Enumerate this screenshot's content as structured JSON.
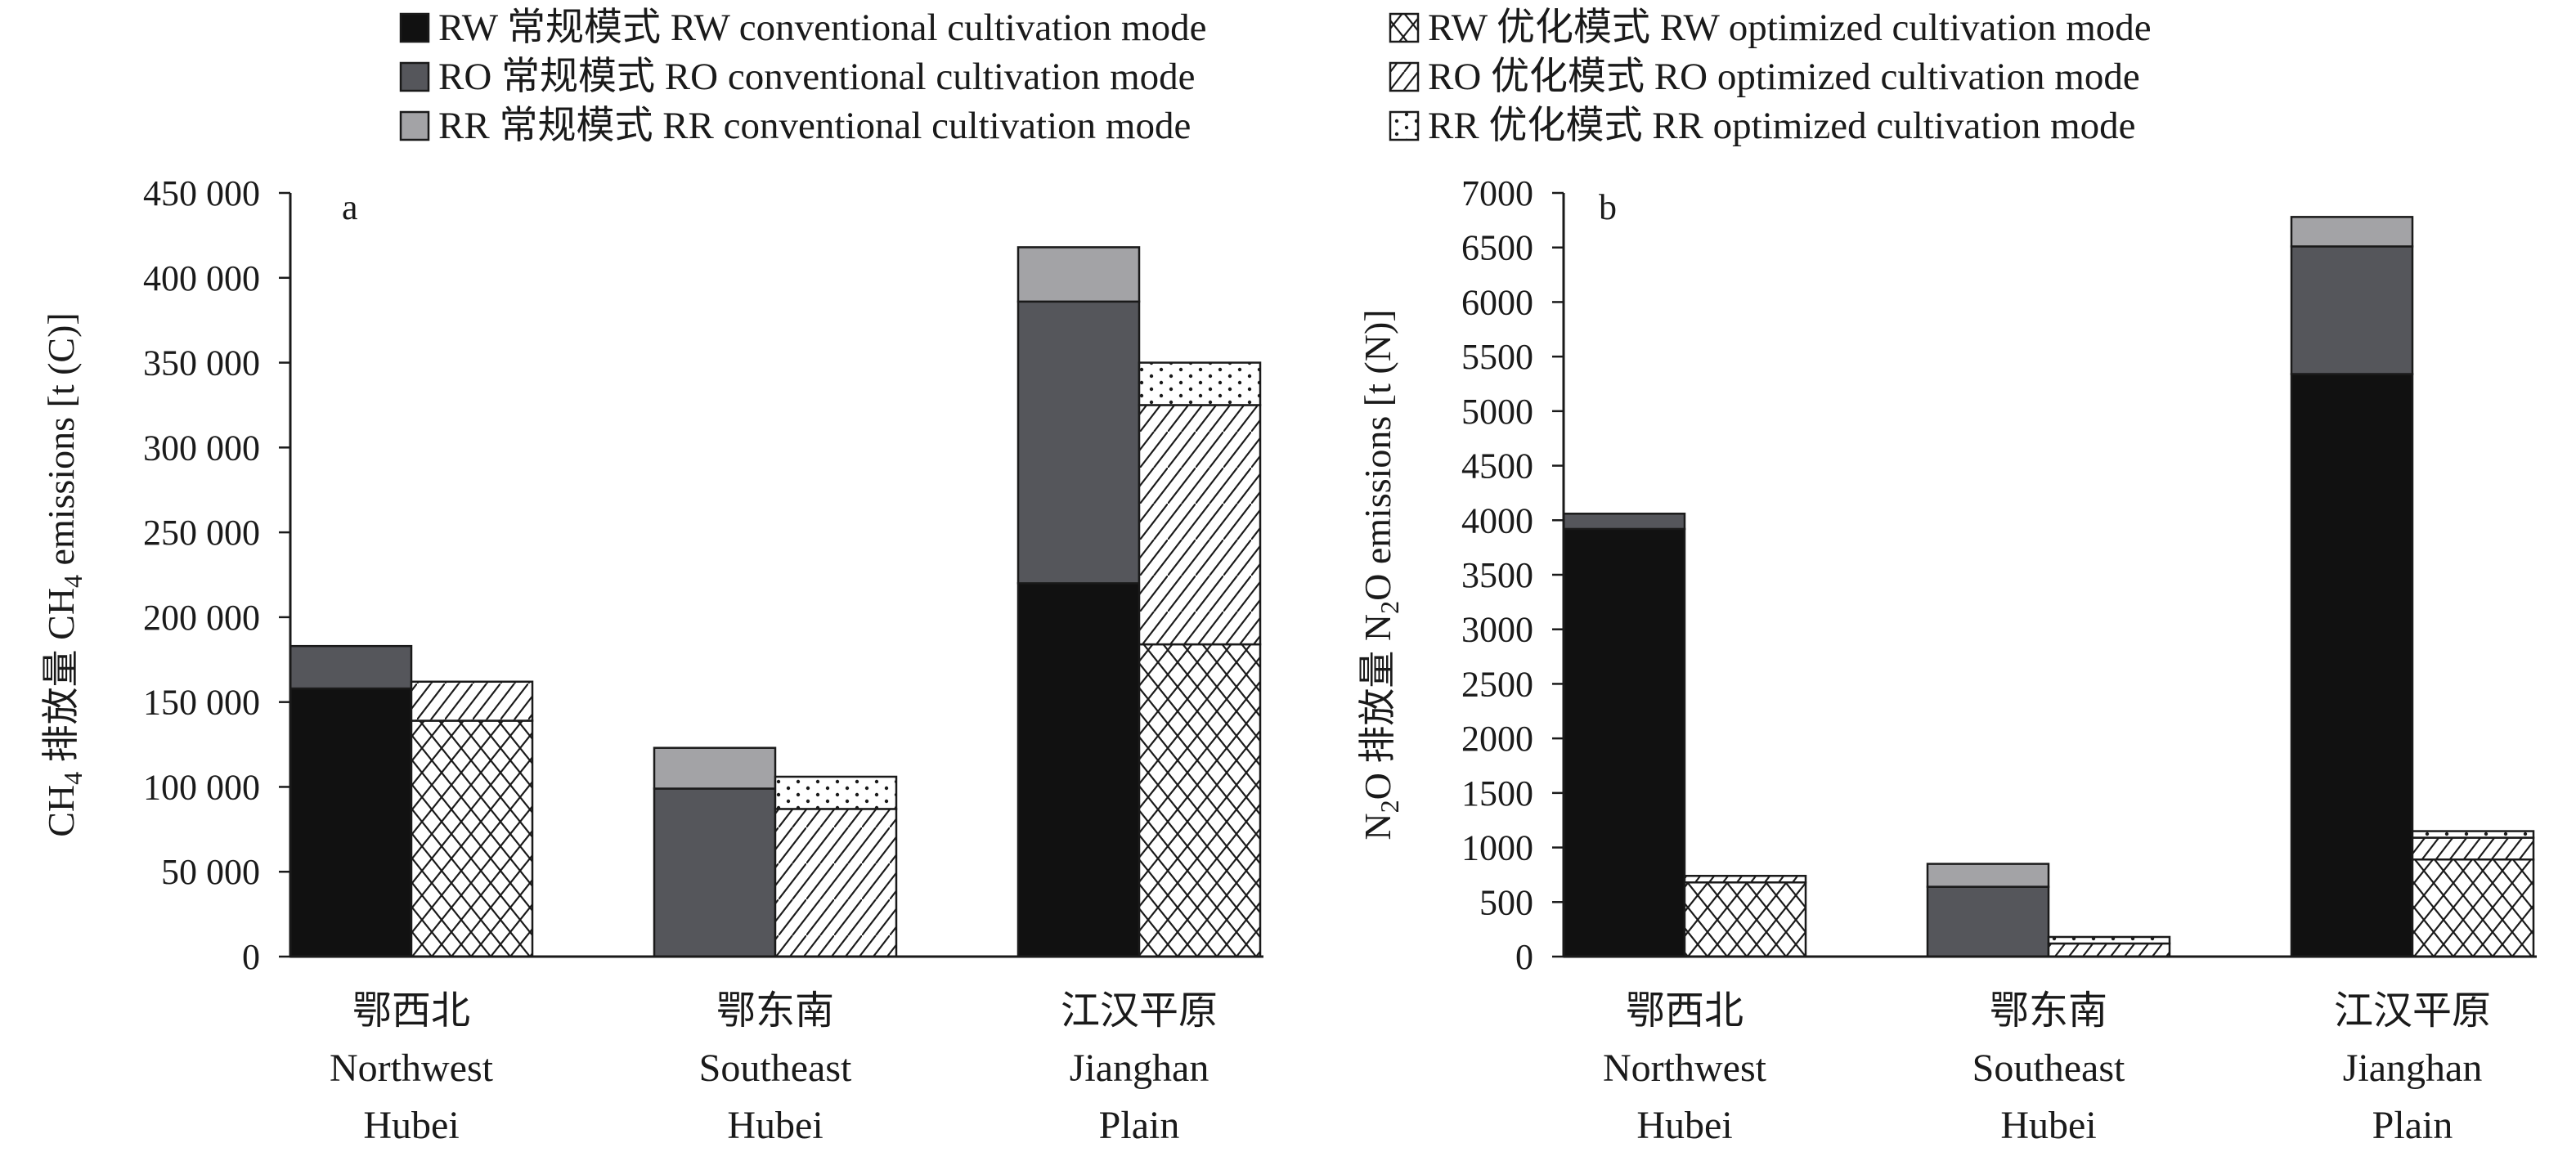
{
  "legend": [
    {
      "id": "RW_conv",
      "label": "RW 常规模式 RW conventional cultivation mode",
      "fill": "solid",
      "color": "#111111"
    },
    {
      "id": "RO_conv",
      "label": "RO 常规模式 RO conventional cultivation mode",
      "fill": "solid",
      "color": "#55565b"
    },
    {
      "id": "RR_conv",
      "label": "RR 常规模式 RR conventional cultivation mode",
      "fill": "solid",
      "color": "#a3a3a6"
    },
    {
      "id": "RW_opt",
      "label": "RW 优化模式 RW optimized cultivation mode",
      "fill": "crosshatch",
      "color": "#ffffff"
    },
    {
      "id": "RO_opt",
      "label": "RO 优化模式 RO optimized cultivation mode",
      "fill": "diagonal",
      "color": "#ffffff"
    },
    {
      "id": "RR_opt",
      "label": "RR 优化模式 RR optimized cultivation mode",
      "fill": "dots",
      "color": "#ffffff"
    }
  ],
  "chart_data": [
    {
      "type": "bar",
      "stacked": true,
      "panel": "a",
      "ylabel": "CH4 排放量 CH4 emissions [t (C)]",
      "ylim": [
        0,
        450000
      ],
      "yticks": [
        0,
        50000,
        100000,
        150000,
        200000,
        250000,
        300000,
        350000,
        400000,
        450000
      ],
      "ytick_labels": [
        "0",
        "50 000",
        "100 000",
        "150 000",
        "200 000",
        "250 000",
        "300 000",
        "350 000",
        "400 000",
        "450 000"
      ],
      "categories": [
        [
          "鄂西北",
          "Northwest",
          "Hubei"
        ],
        [
          "鄂东南",
          "Southeast",
          "Hubei"
        ],
        [
          "江汉平原",
          "Jianghan",
          "Plain"
        ]
      ],
      "groups": [
        {
          "mode": "conventional",
          "series": [
            {
              "key": "RW_conv",
              "values": [
                158000,
                0,
                220000
              ]
            },
            {
              "key": "RO_conv",
              "values": [
                25000,
                99000,
                166000
              ]
            },
            {
              "key": "RR_conv",
              "values": [
                0,
                24000,
                32000
              ]
            }
          ]
        },
        {
          "mode": "optimized",
          "series": [
            {
              "key": "RW_opt",
              "values": [
                139000,
                0,
                184000
              ]
            },
            {
              "key": "RO_opt",
              "values": [
                23000,
                87000,
                141000
              ]
            },
            {
              "key": "RR_opt",
              "values": [
                0,
                19000,
                25000
              ]
            }
          ]
        }
      ]
    },
    {
      "type": "bar",
      "stacked": true,
      "panel": "b",
      "ylabel": "N2O 排放量 N2O emissions [t (N)]",
      "ylim": [
        0,
        7000
      ],
      "yticks": [
        0,
        500,
        1000,
        1500,
        2000,
        2500,
        3000,
        3500,
        4000,
        4500,
        5000,
        5500,
        6000,
        6500,
        7000
      ],
      "ytick_labels": [
        "0",
        "500",
        "1000",
        "1500",
        "2000",
        "2500",
        "3000",
        "3500",
        "4000",
        "4500",
        "5000",
        "5500",
        "6000",
        "6500",
        "7000"
      ],
      "categories": [
        [
          "鄂西北",
          "Northwest",
          "Hubei"
        ],
        [
          "鄂东南",
          "Southeast",
          "Hubei"
        ],
        [
          "江汉平原",
          "Jianghan",
          "Plain"
        ]
      ],
      "groups": [
        {
          "mode": "conventional",
          "series": [
            {
              "key": "RW_conv",
              "values": [
                3920,
                0,
                5340
              ]
            },
            {
              "key": "RO_conv",
              "values": [
                140,
                640,
                1170
              ]
            },
            {
              "key": "RR_conv",
              "values": [
                0,
                210,
                270
              ]
            }
          ]
        },
        {
          "mode": "optimized",
          "series": [
            {
              "key": "RW_opt",
              "values": [
                680,
                0,
                890
              ]
            },
            {
              "key": "RO_opt",
              "values": [
                60,
                120,
                200
              ]
            },
            {
              "key": "RR_opt",
              "values": [
                0,
                60,
                60
              ]
            }
          ]
        }
      ]
    }
  ]
}
